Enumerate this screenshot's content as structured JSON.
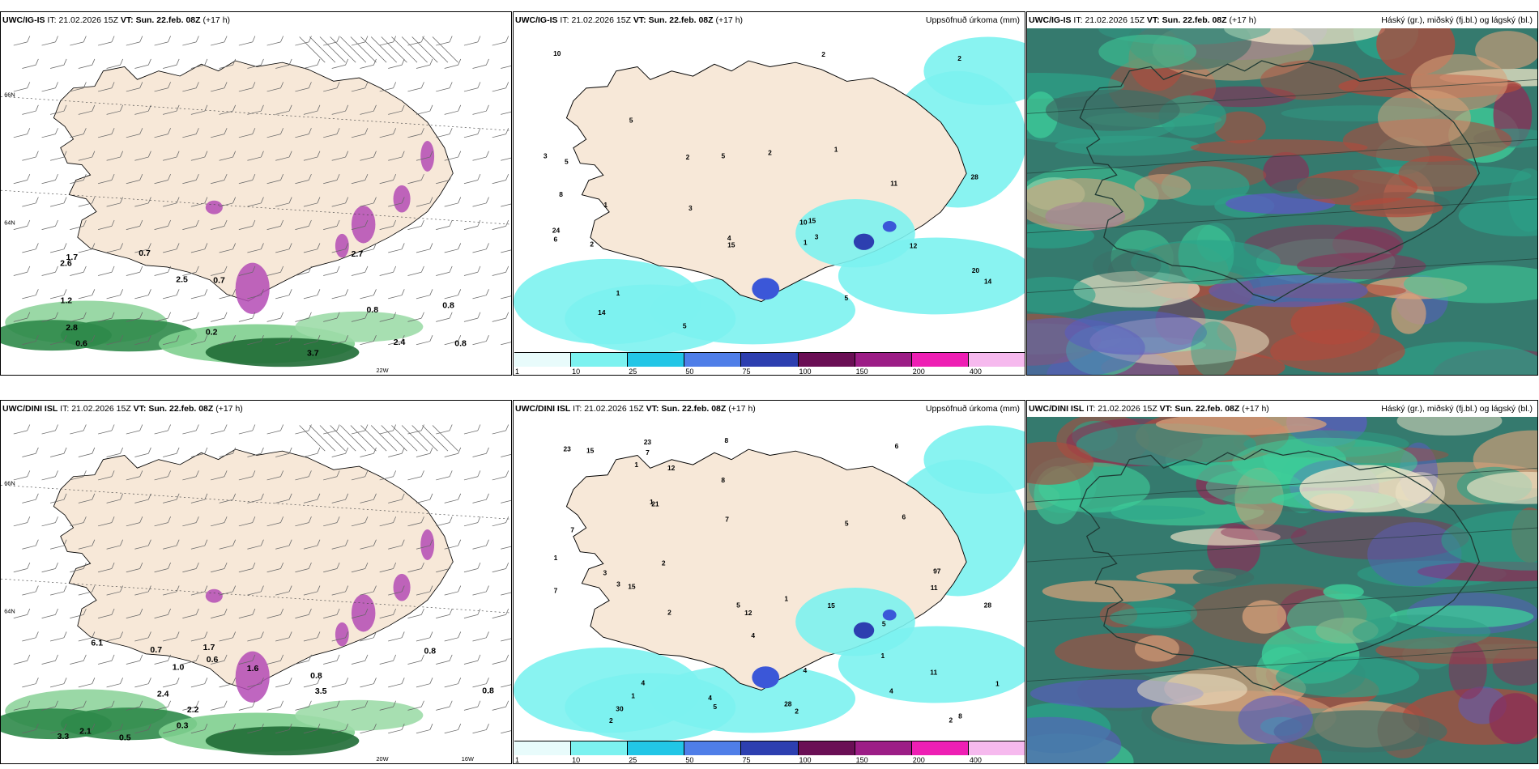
{
  "panels": [
    {
      "id": "p1",
      "model": "UWC/IG-IS",
      "it_prefix": "IT:",
      "it_value": "21.02.2026 15Z",
      "vt_prefix": "VT:",
      "vt_value": "Sun. 22.feb. 08Z",
      "lead": "(+17 h)",
      "right_label": "",
      "kind": "wind",
      "labels": [
        "0.8",
        "0.8",
        "0.6",
        "0.7",
        "0.7",
        "2.4",
        "2.8",
        "2.7",
        "2.5",
        "3.7",
        "2.6",
        "1.2",
        "1.7",
        "0.8",
        "0.2"
      ],
      "lat_labels": [
        "66N",
        "64N",
        "22W"
      ]
    },
    {
      "id": "p2",
      "model": "UWC/IG-IS",
      "it_prefix": "IT:",
      "it_value": "21.02.2026 15Z",
      "vt_prefix": "VT:",
      "vt_value": "Sun. 22.feb. 08Z",
      "lead": "(+17 h)",
      "right_label": "Uppsöfnuð úrkoma (mm)",
      "kind": "precip",
      "labels": [
        "3",
        "5",
        "2",
        "1",
        "3",
        "5",
        "11",
        "15",
        "2",
        "2",
        "1",
        "3",
        "2",
        "4",
        "12",
        "20",
        "1",
        "6",
        "5",
        "5",
        "24",
        "10",
        "15",
        "14",
        "10",
        "2",
        "5",
        "8",
        "1",
        "14",
        "28"
      ],
      "colorbar": [
        "1",
        "10",
        "25",
        "50",
        "75",
        "100",
        "150",
        "200",
        "400"
      ]
    },
    {
      "id": "p3",
      "model": "UWC/IG-IS",
      "it_prefix": "IT:",
      "it_value": "21.02.2026 15Z",
      "vt_prefix": "VT:",
      "vt_value": "Sun. 22.feb. 08Z",
      "lead": "(+17 h)",
      "right_label": "Háský (gr.), miðský (fj.bl.) og lágský (bl.)",
      "kind": "cloud"
    },
    {
      "id": "p4",
      "model": "UWC/DINI ISL",
      "it_prefix": "IT:",
      "it_value": "21.02.2026 15Z",
      "vt_prefix": "VT:",
      "vt_value": "Sun. 22.feb. 08Z",
      "lead": "(+17 h)",
      "right_label": "",
      "kind": "wind",
      "labels": [
        "0.3",
        "1.7",
        "1.6",
        "0.5",
        "6.1",
        "0.8",
        "3.3",
        "2.2",
        "2.4",
        "0.7",
        "1.0",
        "0.8",
        "2.1",
        "0.6",
        "3.5",
        "0.8"
      ],
      "lat_labels": [
        "66N",
        "64N",
        "20W",
        "16W"
      ]
    },
    {
      "id": "p5",
      "model": "UWC/DINI ISL",
      "it_prefix": "IT:",
      "it_value": "21.02.2026 15Z",
      "vt_prefix": "VT:",
      "vt_value": "Sun. 22.feb. 08Z",
      "lead": "(+17 h)",
      "right_label": "Uppsöfnuð úrkoma (mm)",
      "kind": "precip",
      "labels": [
        "1",
        "2",
        "2",
        "1",
        "7",
        "4",
        "5",
        "1",
        "2",
        "3",
        "8",
        "6",
        "3",
        "2",
        "1",
        "1",
        "7",
        "8",
        "23",
        "30",
        "15",
        "5",
        "15",
        "4",
        "2",
        "1",
        "5",
        "97",
        "11",
        "28",
        "15",
        "12",
        "7",
        "7",
        "4",
        "5",
        "4",
        "12",
        "6",
        "4",
        "11",
        "28",
        "23",
        "8",
        "21",
        "1"
      ],
      "colorbar": [
        "1",
        "10",
        "25",
        "50",
        "75",
        "100",
        "150",
        "200",
        "400"
      ]
    },
    {
      "id": "p6",
      "model": "UWC/DINI ISL",
      "it_prefix": "IT:",
      "it_value": "21.02.2026 15Z",
      "vt_prefix": "VT:",
      "vt_value": "Sun. 22.feb. 08Z",
      "lead": "(+17 h)",
      "right_label": "Háský (gr.), miðský (fj.bl.) og lágský (bl.)",
      "kind": "cloud"
    }
  ],
  "colors": {
    "land": "#f7e8d8",
    "sea_green": "#3ab27a",
    "purple": "#b44bb5",
    "cyan": "#7cf2f0",
    "cloud_bg": "#357a6e"
  }
}
